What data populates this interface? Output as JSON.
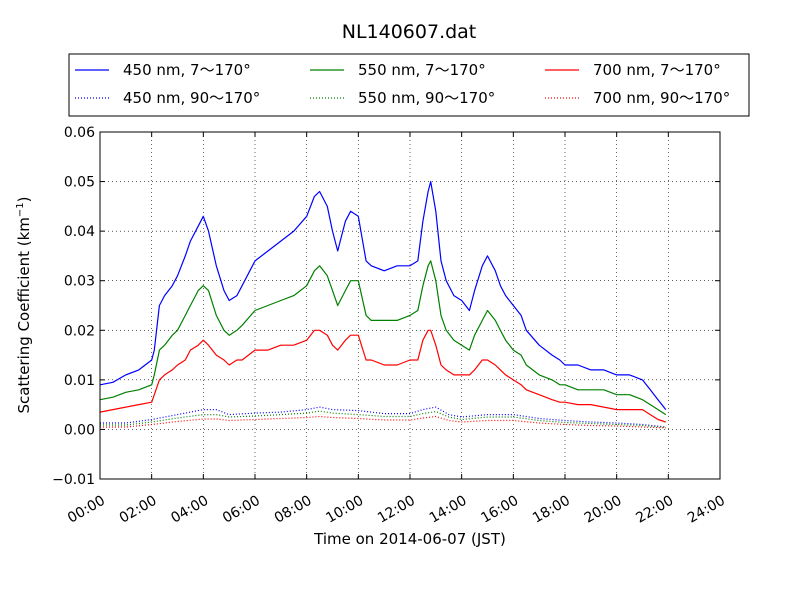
{
  "chart_data": {
    "type": "line",
    "title": "NL140607.dat",
    "xlabel": "Time on 2014-06-07 (JST)",
    "ylabel": "Scattering Coefficient (km",
    "ylabel_sup": "−1",
    "ylabel_close": ")",
    "xlim": [
      0,
      24
    ],
    "ylim": [
      -0.01,
      0.06
    ],
    "x_unit": "hour",
    "grid": true,
    "grid_style": "dotted",
    "legend_position": "top (above plot, 3 columns)",
    "x_ticks": [
      0,
      2,
      4,
      6,
      8,
      10,
      12,
      14,
      16,
      18,
      20,
      22,
      24
    ],
    "x_tick_labels": [
      "00:00",
      "02:00",
      "04:00",
      "06:00",
      "08:00",
      "10:00",
      "12:00",
      "14:00",
      "16:00",
      "18:00",
      "20:00",
      "22:00",
      "24:00"
    ],
    "y_ticks": [
      -0.01,
      0,
      0.01,
      0.02,
      0.03,
      0.04,
      0.05,
      0.06
    ],
    "y_tick_labels": [
      "−0.01",
      "0.00",
      "0.01",
      "0.02",
      "0.03",
      "0.04",
      "0.05",
      "0.06"
    ],
    "series": [
      {
        "name": "450 nm, 7～170°",
        "color": "#0000ff",
        "style": "solid",
        "x": [
          0,
          0.5,
          1,
          1.5,
          2,
          2.1,
          2.3,
          2.5,
          2.8,
          3,
          3.3,
          3.5,
          3.8,
          4,
          4.2,
          4.5,
          4.8,
          5,
          5.3,
          5.5,
          6,
          6.5,
          7,
          7.5,
          8,
          8.3,
          8.5,
          8.8,
          9,
          9.2,
          9.5,
          9.7,
          10,
          10.3,
          10.5,
          11,
          11.5,
          12,
          12.3,
          12.5,
          12.7,
          12.8,
          13,
          13.2,
          13.4,
          13.7,
          14,
          14.3,
          14.5,
          14.8,
          15,
          15.3,
          15.5,
          15.7,
          16,
          16.3,
          16.5,
          17,
          17.5,
          17.8,
          18,
          18.5,
          19,
          19.5,
          20,
          20.5,
          21,
          21.3,
          21.6,
          21.9
        ],
        "y": [
          0.009,
          0.0095,
          0.011,
          0.012,
          0.014,
          0.016,
          0.025,
          0.027,
          0.029,
          0.031,
          0.035,
          0.038,
          0.041,
          0.043,
          0.04,
          0.033,
          0.028,
          0.026,
          0.027,
          0.029,
          0.034,
          0.036,
          0.038,
          0.04,
          0.043,
          0.047,
          0.048,
          0.045,
          0.04,
          0.036,
          0.042,
          0.044,
          0.043,
          0.034,
          0.033,
          0.032,
          0.033,
          0.033,
          0.034,
          0.042,
          0.048,
          0.05,
          0.044,
          0.034,
          0.03,
          0.027,
          0.026,
          0.024,
          0.028,
          0.033,
          0.035,
          0.032,
          0.029,
          0.027,
          0.025,
          0.023,
          0.02,
          0.017,
          0.015,
          0.014,
          0.013,
          0.013,
          0.012,
          0.012,
          0.011,
          0.011,
          0.01,
          0.008,
          0.006,
          0.004
        ]
      },
      {
        "name": "550 nm, 7～170°",
        "color": "#008000",
        "style": "solid",
        "x": [
          0,
          0.5,
          1,
          1.5,
          2,
          2.1,
          2.3,
          2.5,
          2.8,
          3,
          3.3,
          3.5,
          3.8,
          4,
          4.2,
          4.5,
          4.8,
          5,
          5.3,
          5.5,
          6,
          6.5,
          7,
          7.5,
          8,
          8.3,
          8.5,
          8.8,
          9,
          9.2,
          9.5,
          9.7,
          10,
          10.3,
          10.5,
          11,
          11.5,
          12,
          12.3,
          12.5,
          12.7,
          12.8,
          13,
          13.2,
          13.4,
          13.7,
          14,
          14.3,
          14.5,
          14.8,
          15,
          15.3,
          15.5,
          15.7,
          16,
          16.3,
          16.5,
          17,
          17.5,
          17.8,
          18,
          18.5,
          19,
          19.5,
          20,
          20.5,
          21,
          21.3,
          21.6,
          21.9
        ],
        "y": [
          0.006,
          0.0065,
          0.0075,
          0.008,
          0.009,
          0.011,
          0.016,
          0.017,
          0.019,
          0.02,
          0.023,
          0.025,
          0.028,
          0.029,
          0.028,
          0.023,
          0.02,
          0.019,
          0.02,
          0.021,
          0.024,
          0.025,
          0.026,
          0.027,
          0.029,
          0.032,
          0.033,
          0.031,
          0.028,
          0.025,
          0.028,
          0.03,
          0.03,
          0.023,
          0.022,
          0.022,
          0.022,
          0.023,
          0.024,
          0.029,
          0.033,
          0.034,
          0.03,
          0.023,
          0.02,
          0.018,
          0.017,
          0.016,
          0.019,
          0.022,
          0.024,
          0.022,
          0.02,
          0.018,
          0.016,
          0.015,
          0.013,
          0.011,
          0.01,
          0.009,
          0.009,
          0.008,
          0.008,
          0.008,
          0.007,
          0.007,
          0.006,
          0.005,
          0.004,
          0.003
        ]
      },
      {
        "name": "700 nm, 7～170°",
        "color": "#ff0000",
        "style": "solid",
        "x": [
          0,
          0.5,
          1,
          1.5,
          2,
          2.1,
          2.3,
          2.5,
          2.8,
          3,
          3.3,
          3.5,
          3.8,
          4,
          4.2,
          4.5,
          4.8,
          5,
          5.3,
          5.5,
          6,
          6.5,
          7,
          7.5,
          8,
          8.3,
          8.5,
          8.8,
          9,
          9.2,
          9.5,
          9.7,
          10,
          10.3,
          10.5,
          11,
          11.5,
          12,
          12.3,
          12.5,
          12.7,
          12.8,
          13,
          13.2,
          13.4,
          13.7,
          14,
          14.3,
          14.5,
          14.8,
          15,
          15.3,
          15.5,
          15.7,
          16,
          16.3,
          16.5,
          17,
          17.5,
          17.8,
          18,
          18.5,
          19,
          19.5,
          20,
          20.5,
          21,
          21.3,
          21.6,
          21.9
        ],
        "y": [
          0.0035,
          0.004,
          0.0045,
          0.005,
          0.0055,
          0.007,
          0.01,
          0.011,
          0.012,
          0.013,
          0.014,
          0.016,
          0.017,
          0.018,
          0.017,
          0.015,
          0.014,
          0.013,
          0.014,
          0.014,
          0.016,
          0.016,
          0.017,
          0.017,
          0.018,
          0.02,
          0.02,
          0.019,
          0.017,
          0.016,
          0.018,
          0.019,
          0.019,
          0.014,
          0.014,
          0.013,
          0.013,
          0.014,
          0.014,
          0.018,
          0.02,
          0.02,
          0.017,
          0.013,
          0.012,
          0.011,
          0.011,
          0.011,
          0.012,
          0.014,
          0.014,
          0.013,
          0.012,
          0.011,
          0.01,
          0.009,
          0.008,
          0.007,
          0.006,
          0.0055,
          0.0055,
          0.005,
          0.005,
          0.0045,
          0.004,
          0.004,
          0.004,
          0.003,
          0.002,
          0.0015
        ]
      },
      {
        "name": "450 nm, 90～170°",
        "color": "#0000ff",
        "style": "dotted",
        "x": [
          0,
          1,
          2,
          3,
          4,
          4.5,
          5,
          6,
          7,
          8,
          8.5,
          9,
          10,
          11,
          12,
          12.5,
          13,
          13.5,
          14,
          15,
          16,
          17,
          18,
          19,
          20,
          21,
          21.9
        ],
        "y": [
          0.0013,
          0.0013,
          0.002,
          0.003,
          0.004,
          0.004,
          0.003,
          0.0033,
          0.0035,
          0.004,
          0.0045,
          0.004,
          0.0038,
          0.0032,
          0.0032,
          0.004,
          0.0045,
          0.003,
          0.0025,
          0.003,
          0.003,
          0.0022,
          0.0018,
          0.0015,
          0.0013,
          0.001,
          0.0005
        ]
      },
      {
        "name": "550 nm, 90～170°",
        "color": "#008000",
        "style": "dotted",
        "x": [
          0,
          1,
          2,
          3,
          4,
          4.5,
          5,
          6,
          7,
          8,
          8.5,
          9,
          10,
          11,
          12,
          12.5,
          13,
          13.5,
          14,
          15,
          16,
          17,
          18,
          19,
          20,
          21,
          21.9
        ],
        "y": [
          0.0009,
          0.0009,
          0.0015,
          0.0023,
          0.003,
          0.003,
          0.0025,
          0.0027,
          0.003,
          0.0033,
          0.0037,
          0.0033,
          0.003,
          0.0026,
          0.0026,
          0.0032,
          0.0036,
          0.0025,
          0.002,
          0.0025,
          0.0025,
          0.0018,
          0.0014,
          0.0012,
          0.001,
          0.0008,
          0.0004
        ]
      },
      {
        "name": "700 nm, 90～170°",
        "color": "#ff0000",
        "style": "dotted",
        "x": [
          0,
          1,
          2,
          3,
          4,
          4.5,
          5,
          6,
          7,
          8,
          8.5,
          9,
          10,
          11,
          12,
          12.5,
          13,
          13.5,
          14,
          15,
          16,
          17,
          18,
          19,
          20,
          21,
          21.9
        ],
        "y": [
          0.0005,
          0.0005,
          0.001,
          0.0016,
          0.0021,
          0.0021,
          0.0018,
          0.002,
          0.0022,
          0.0024,
          0.0026,
          0.0024,
          0.0022,
          0.0019,
          0.0019,
          0.0023,
          0.0026,
          0.0018,
          0.0015,
          0.0018,
          0.0018,
          0.0013,
          0.001,
          0.0008,
          0.0007,
          0.0005,
          0.0003
        ]
      }
    ]
  }
}
